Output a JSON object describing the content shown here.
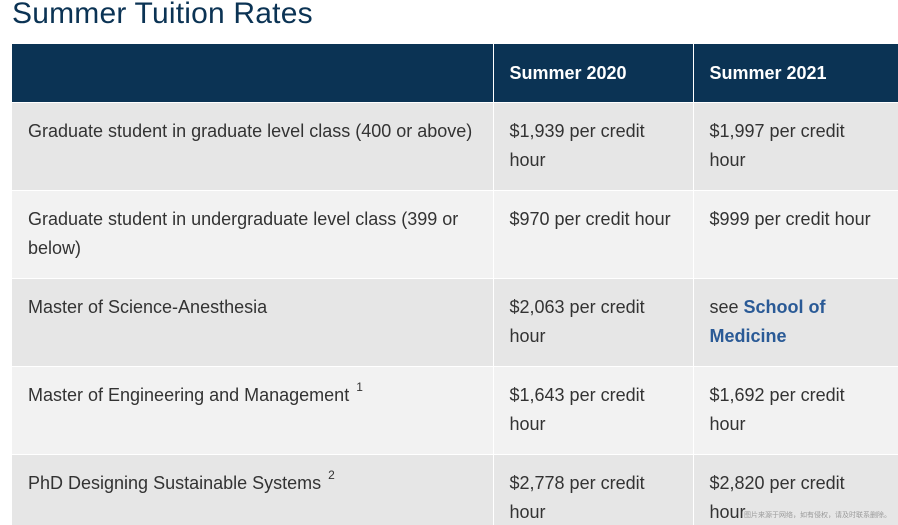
{
  "page": {
    "title": "Summer Tuition Rates"
  },
  "table": {
    "headers": [
      "",
      "Summer 2020",
      "Summer 2021"
    ],
    "rows": [
      {
        "program": "Graduate student in graduate level class (400 or above)",
        "note": "",
        "summer_2020": "$1,939 per credit hour",
        "summer_2021": "$1,997 per credit hour"
      },
      {
        "program": "Graduate student in undergraduate level class (399 or below)",
        "note": "",
        "summer_2020": "$970 per credit hour",
        "summer_2021": "$999 per credit hour"
      },
      {
        "program": "Master of Science-Anesthesia",
        "note": "",
        "summer_2020": "$2,063 per credit hour",
        "summer_2021_prefix": "see ",
        "summer_2021_link": "School of Medicine"
      },
      {
        "program": "Master of Engineering and Management",
        "note": "1",
        "summer_2020": "$1,643 per credit hour",
        "summer_2021": "$1,692 per credit hour"
      },
      {
        "program": "PhD Designing Sustainable Systems",
        "note": "2",
        "summer_2020": "$2,778 per credit hour",
        "summer_2021": "$2,820 per credit hour"
      }
    ]
  },
  "watermark": "图片来源于网络，如有侵权，请及时联系删除。",
  "colors": {
    "header_bg": "#0b3354",
    "title": "#0b3354",
    "row_odd": "#e6e6e6",
    "row_even": "#f2f2f2",
    "link": "#2a5a96"
  }
}
